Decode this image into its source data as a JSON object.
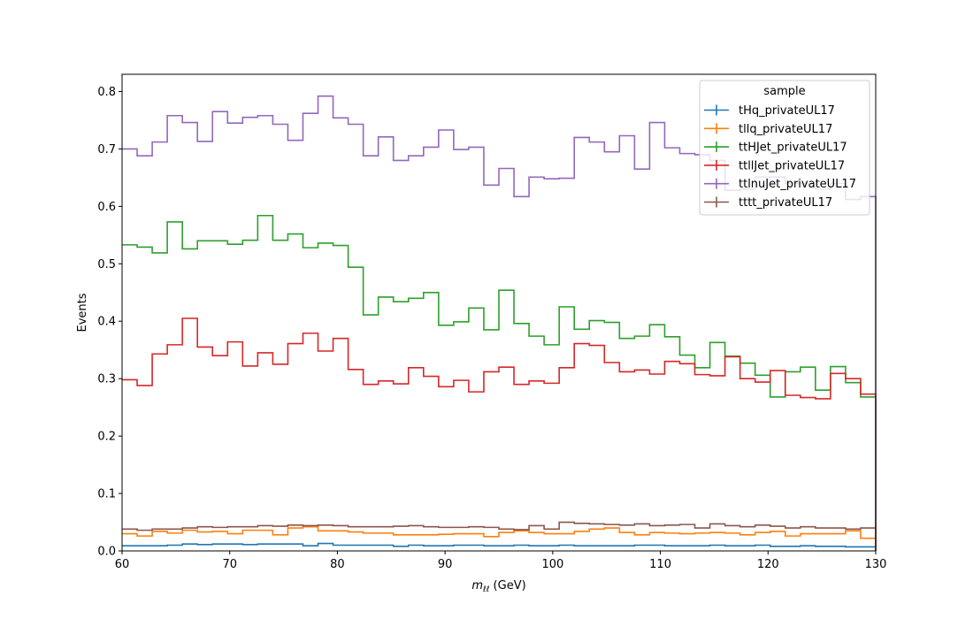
{
  "chart_data": {
    "type": "line",
    "drawstyle": "step",
    "xlabel_main": "m",
    "xlabel_sub": "ℓℓ",
    "xlabel_unit": " (GeV)",
    "ylabel": "Events",
    "xlim": [
      60,
      130
    ],
    "ylim": [
      0,
      0.83
    ],
    "xticks": [
      60,
      70,
      80,
      90,
      100,
      110,
      120,
      130
    ],
    "yticks": [
      0.0,
      0.1,
      0.2,
      0.3,
      0.4,
      0.5,
      0.6,
      0.7,
      0.8
    ],
    "bin_edges_start": 60,
    "bin_width": 1.4,
    "legend": {
      "title": "sample",
      "placement": "top-right"
    },
    "series": [
      {
        "name": "tHq_privateUL17",
        "color": "#1f77b4",
        "values": [
          0.009,
          0.009,
          0.009,
          0.01,
          0.012,
          0.011,
          0.012,
          0.012,
          0.011,
          0.012,
          0.012,
          0.012,
          0.009,
          0.013,
          0.01,
          0.01,
          0.01,
          0.01,
          0.008,
          0.01,
          0.009,
          0.009,
          0.01,
          0.01,
          0.009,
          0.009,
          0.01,
          0.009,
          0.009,
          0.01,
          0.009,
          0.009,
          0.009,
          0.009,
          0.01,
          0.01,
          0.009,
          0.009,
          0.009,
          0.01,
          0.009,
          0.009,
          0.01,
          0.008,
          0.008,
          0.009,
          0.008,
          0.008,
          0.007,
          0.007
        ]
      },
      {
        "name": "tllq_privateUL17",
        "color": "#ff7f0e",
        "values": [
          0.03,
          0.026,
          0.034,
          0.031,
          0.036,
          0.033,
          0.034,
          0.03,
          0.036,
          0.036,
          0.028,
          0.04,
          0.042,
          0.035,
          0.035,
          0.033,
          0.031,
          0.031,
          0.028,
          0.028,
          0.028,
          0.029,
          0.03,
          0.03,
          0.025,
          0.032,
          0.035,
          0.032,
          0.03,
          0.03,
          0.034,
          0.038,
          0.04,
          0.032,
          0.028,
          0.032,
          0.031,
          0.03,
          0.031,
          0.032,
          0.031,
          0.028,
          0.032,
          0.034,
          0.026,
          0.03,
          0.03,
          0.03,
          0.035,
          0.022
        ]
      },
      {
        "name": "ttHJet_privateUL17",
        "color": "#2ca02c",
        "values": [
          0.533,
          0.529,
          0.519,
          0.573,
          0.526,
          0.54,
          0.54,
          0.534,
          0.541,
          0.584,
          0.541,
          0.552,
          0.528,
          0.536,
          0.532,
          0.494,
          0.411,
          0.442,
          0.434,
          0.44,
          0.45,
          0.393,
          0.399,
          0.423,
          0.385,
          0.454,
          0.396,
          0.374,
          0.359,
          0.425,
          0.386,
          0.401,
          0.398,
          0.37,
          0.374,
          0.394,
          0.373,
          0.341,
          0.319,
          0.363,
          0.339,
          0.327,
          0.306,
          0.268,
          0.312,
          0.32,
          0.28,
          0.321,
          0.293,
          0.268
        ]
      },
      {
        "name": "ttllJet_privateUL17",
        "color": "#d62728",
        "values": [
          0.298,
          0.288,
          0.343,
          0.359,
          0.405,
          0.355,
          0.34,
          0.364,
          0.322,
          0.345,
          0.325,
          0.361,
          0.379,
          0.348,
          0.37,
          0.316,
          0.29,
          0.296,
          0.291,
          0.319,
          0.304,
          0.286,
          0.297,
          0.277,
          0.312,
          0.32,
          0.29,
          0.296,
          0.292,
          0.319,
          0.361,
          0.358,
          0.328,
          0.312,
          0.315,
          0.308,
          0.33,
          0.326,
          0.307,
          0.305,
          0.338,
          0.3,
          0.294,
          0.314,
          0.271,
          0.267,
          0.265,
          0.309,
          0.3,
          0.273
        ]
      },
      {
        "name": "ttlnuJet_privateUL17",
        "color": "#9467bd",
        "values": [
          0.7,
          0.688,
          0.712,
          0.758,
          0.746,
          0.713,
          0.765,
          0.745,
          0.755,
          0.758,
          0.743,
          0.715,
          0.762,
          0.792,
          0.754,
          0.743,
          0.688,
          0.721,
          0.68,
          0.688,
          0.703,
          0.733,
          0.699,
          0.703,
          0.637,
          0.666,
          0.617,
          0.651,
          0.648,
          0.649,
          0.72,
          0.712,
          0.695,
          0.723,
          0.665,
          0.746,
          0.702,
          0.692,
          0.69,
          0.68,
          0.628,
          0.63,
          0.651,
          0.651,
          0.64,
          0.64,
          0.63,
          0.64,
          0.612,
          0.617
        ]
      },
      {
        "name": "tttt_privateUL17",
        "color": "#8c564b",
        "values": [
          0.038,
          0.036,
          0.038,
          0.038,
          0.04,
          0.042,
          0.041,
          0.042,
          0.042,
          0.044,
          0.043,
          0.045,
          0.044,
          0.045,
          0.044,
          0.042,
          0.042,
          0.042,
          0.043,
          0.044,
          0.042,
          0.041,
          0.041,
          0.042,
          0.041,
          0.038,
          0.037,
          0.044,
          0.038,
          0.05,
          0.048,
          0.047,
          0.046,
          0.045,
          0.047,
          0.044,
          0.045,
          0.046,
          0.04,
          0.047,
          0.044,
          0.042,
          0.045,
          0.043,
          0.04,
          0.042,
          0.04,
          0.04,
          0.038,
          0.04
        ]
      }
    ]
  }
}
